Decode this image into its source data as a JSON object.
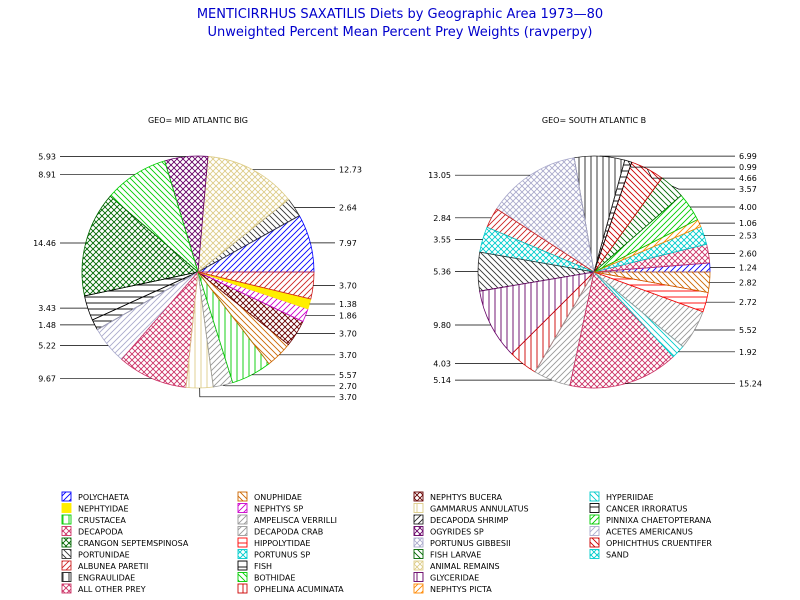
{
  "title": "MENTICIRRHUS SAXATILIS Diets by Geographic Area 1973—80",
  "subtitle": "Unweighted Percent Mean Percent Prey  Weights (ravperpy)",
  "chart_data": [
    {
      "type": "pie",
      "title": "GEO= MID ATLANTIC BIG",
      "slices": [
        {
          "category": "POLYCHAETA",
          "value": 7.97
        },
        {
          "category": "PORTUNIDAE",
          "value": 2.64
        },
        {
          "category": "ANIMAL REMAINS",
          "value": 12.73
        },
        {
          "category": "OGYRIDES SP",
          "value": 5.93
        },
        {
          "category": "BOTHIDAE",
          "value": 8.91
        },
        {
          "category": "CRANGON SEPTEMSPINOSA",
          "value": 14.46
        },
        {
          "category": "FISH",
          "value": 3.43
        },
        {
          "category": "CANCER IRRORATUS",
          "value": 1.48
        },
        {
          "category": "ACETES AMERICANUS",
          "value": 5.22
        },
        {
          "category": "DECAPODA",
          "value": 9.67
        },
        {
          "category": "GAMMARUS ANNULATUS",
          "value": 3.7
        },
        {
          "category": "DECAPODA CRAB",
          "value": 2.7
        },
        {
          "category": "CRUSTACEA",
          "value": 5.57
        },
        {
          "category": "ONUPHIDAE",
          "value": 3.7
        },
        {
          "category": "NEPHTYS BUCERA",
          "value": 3.7
        },
        {
          "category": "NEPHTYS SP",
          "value": 1.86
        },
        {
          "category": "NEPHTYIDAE",
          "value": 1.38
        },
        {
          "category": "ALBUNEA PARETII",
          "value": 3.7
        }
      ]
    },
    {
      "type": "pie",
      "title": "GEO= SOUTH  ATLANTIC  B",
      "slices": [
        {
          "category": "POLYCHAETA",
          "value": 1.24
        },
        {
          "category": "ALL OTHER PREY",
          "value": 2.6
        },
        {
          "category": "PORTUNUS SP",
          "value": 2.53
        },
        {
          "category": "NEPHTYS PICTA",
          "value": 1.06
        },
        {
          "category": "PINNIXA CHAETOPTERANA",
          "value": 4.0
        },
        {
          "category": "FISH LARVAE",
          "value": 3.57
        },
        {
          "category": "OPHICHTHUS CRUENTIFER",
          "value": 4.66
        },
        {
          "category": "FISH",
          "value": 0.99
        },
        {
          "category": "ENGRAULIDAE",
          "value": 6.99
        },
        {
          "category": "PORTUNUS GIBBESII",
          "value": 13.05
        },
        {
          "category": "ALBUNEA PARETII",
          "value": 2.84
        },
        {
          "category": "SAND",
          "value": 3.55
        },
        {
          "category": "PORTUNIDAE",
          "value": 5.36
        },
        {
          "category": "GLYCERIDAE",
          "value": 9.8
        },
        {
          "category": "OPHELINA ACUMINATA",
          "value": 4.03
        },
        {
          "category": "AMPELISCA VERRILLI",
          "value": 5.14
        },
        {
          "category": "DECAPODA",
          "value": 15.24
        },
        {
          "category": "HYPERIIDAE",
          "value": 1.92
        },
        {
          "category": "DECAPODA CRAB",
          "value": 5.52
        },
        {
          "category": "HIPPOLYTIDAE",
          "value": 2.72
        },
        {
          "category": "ONUPHIDAE",
          "value": 2.82
        }
      ]
    }
  ],
  "legend": [
    {
      "label": "POLYCHAETA",
      "color": "#0000ff",
      "pattern": "d1"
    },
    {
      "label": "NEPHTYIDAE",
      "color": "#ffee00",
      "pattern": "solid"
    },
    {
      "label": "CRUSTACEA",
      "color": "#00cc00",
      "pattern": "v"
    },
    {
      "label": "DECAPODA",
      "color": "#cc3366",
      "pattern": "x"
    },
    {
      "label": "CRANGON SEPTEMSPINOSA",
      "color": "#006600",
      "pattern": "x"
    },
    {
      "label": "PORTUNIDAE",
      "color": "#333333",
      "pattern": "d2"
    },
    {
      "label": "ALBUNEA PARETII",
      "color": "#cc2222",
      "pattern": "d1"
    },
    {
      "label": "ENGRAULIDAE",
      "color": "#222222",
      "pattern": "v"
    },
    {
      "label": "ALL OTHER PREY",
      "color": "#cc3366",
      "pattern": "x"
    },
    {
      "label": "ONUPHIDAE",
      "color": "#cc6600",
      "pattern": "d2"
    },
    {
      "label": "NEPHTYS SP",
      "color": "#cc00cc",
      "pattern": "d1"
    },
    {
      "label": "AMPELISCA VERRILLI",
      "color": "#999999",
      "pattern": "d1"
    },
    {
      "label": "DECAPODA CRAB",
      "color": "#999999",
      "pattern": "d1"
    },
    {
      "label": "HIPPOLYTIDAE",
      "color": "#ff0000",
      "pattern": "h"
    },
    {
      "label": "PORTUNUS SP",
      "color": "#00cccc",
      "pattern": "x"
    },
    {
      "label": "FISH",
      "color": "#000000",
      "pattern": "h"
    },
    {
      "label": "BOTHIDAE",
      "color": "#00cc00",
      "pattern": "d2"
    },
    {
      "label": "OPHELINA ACUMINATA",
      "color": "#cc0000",
      "pattern": "v"
    },
    {
      "label": "NEPHTYS BUCERA",
      "color": "#660000",
      "pattern": "x"
    },
    {
      "label": "GAMMARUS ANNULATUS",
      "color": "#ddcc88",
      "pattern": "v"
    },
    {
      "label": "DECAPODA SHRIMP",
      "color": "#222222",
      "pattern": "d1"
    },
    {
      "label": "OGYRIDES SP",
      "color": "#660066",
      "pattern": "x"
    },
    {
      "label": "PORTUNUS GIBBESII",
      "color": "#aaaacc",
      "pattern": "x"
    },
    {
      "label": "FISH LARVAE",
      "color": "#006600",
      "pattern": "d2"
    },
    {
      "label": "ANIMAL REMAINS",
      "color": "#ddcc88",
      "pattern": "x"
    },
    {
      "label": "GLYCERIDAE",
      "color": "#660066",
      "pattern": "v"
    },
    {
      "label": "NEPHTYS PICTA",
      "color": "#ff8800",
      "pattern": "d1"
    },
    {
      "label": "HYPERIIDAE",
      "color": "#00cccc",
      "pattern": "d2"
    },
    {
      "label": "CANCER IRRORATUS",
      "color": "#000000",
      "pattern": "h"
    },
    {
      "label": "PINNIXA CHAETOPTERANA",
      "color": "#00cc00",
      "pattern": "d1"
    },
    {
      "label": "ACETES AMERICANUS",
      "color": "#aaaacc",
      "pattern": "d1"
    },
    {
      "label": "OPHICHTHUS CRUENTIFER",
      "color": "#cc0000",
      "pattern": "d2"
    },
    {
      "label": "SAND",
      "color": "#00cccc",
      "pattern": "x"
    }
  ]
}
